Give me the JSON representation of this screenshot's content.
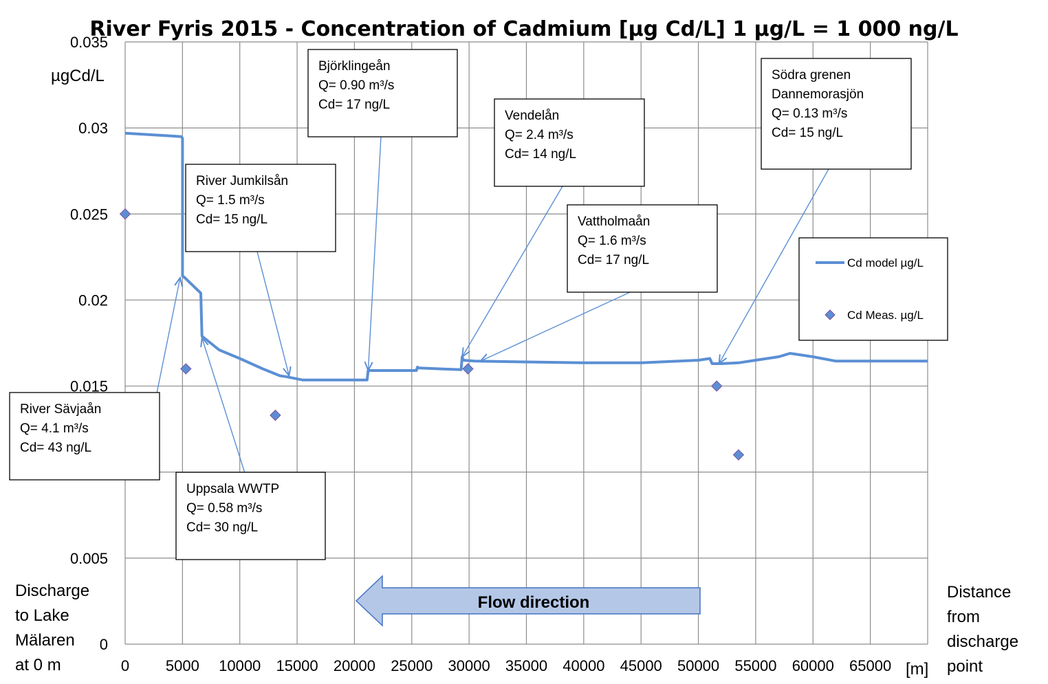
{
  "chart_data": {
    "type": "line",
    "title": "River Fyris 2015  - Concentration of Cadmium [µg Cd/L]    1 µg/L = 1 000 ng/L",
    "ylabel": "µgCd/L",
    "xlabel_left": [
      "Discharge",
      "to Lake",
      "Mälaren",
      "at 0 m"
    ],
    "xlabel_right": [
      "Distance",
      "from",
      "discharge",
      "point"
    ],
    "xunit": "[m]",
    "xlim": [
      0,
      70000
    ],
    "ylim": [
      0,
      0.035
    ],
    "xticks": [
      "0",
      "5000",
      "10000",
      "15000",
      "20000",
      "25000",
      "30000",
      "35000",
      "40000",
      "45000",
      "50000",
      "55000",
      "60000",
      "65000"
    ],
    "yticks": [
      "0",
      "0.005",
      "0.01",
      "0.015",
      "0.02",
      "0.025",
      "0.03",
      "0.035"
    ],
    "yticks_shown": [
      "0",
      "0.005",
      "",
      "0.015",
      "0.02",
      "0.025",
      "0.03",
      "0.035"
    ],
    "grid": true,
    "legend_position": "right",
    "series": [
      {
        "name": "Cd model µg/L",
        "kind": "line",
        "color": "#5b8fd4",
        "x": [
          0,
          4900,
          5000,
          5000,
          5200,
          6600,
          6700,
          8200,
          10000,
          12000,
          13500,
          14000,
          15500,
          17000,
          19000,
          21100,
          21200,
          25000,
          25400,
          25500,
          25600,
          29300,
          29400,
          29500,
          30500,
          35000,
          40000,
          45000,
          50000,
          51000,
          51200,
          52000,
          53500,
          55000,
          57000,
          58000,
          60000,
          62000,
          65000,
          70000
        ],
        "y": [
          0.0297,
          0.0295,
          0.0294,
          0.0214,
          0.0213,
          0.0204,
          0.0179,
          0.0171,
          0.0166,
          0.016,
          0.0156,
          0.01555,
          0.01535,
          0.01535,
          0.01535,
          0.01535,
          0.0159,
          0.0159,
          0.0159,
          0.0161,
          0.01605,
          0.01595,
          0.0167,
          0.0165,
          0.01645,
          0.0164,
          0.01635,
          0.01635,
          0.0165,
          0.0166,
          0.0163,
          0.0163,
          0.01635,
          0.0165,
          0.0167,
          0.0169,
          0.0167,
          0.01645,
          0.01645,
          0.01645
        ]
      },
      {
        "name": "Cd Meas. µg/L",
        "kind": "scatter",
        "color": "#5b8fd4",
        "x": [
          0,
          5300,
          13100,
          29900,
          51600,
          53500
        ],
        "y": [
          0.025,
          0.016,
          0.0133,
          0.016,
          0.015,
          0.011
        ]
      }
    ],
    "annotations": [
      {
        "lines": [
          "River Sävjaån",
          "Q= 4.1 m³/s",
          "Cd= 43 ng/L"
        ],
        "target": [
          4800,
          0.0213
        ]
      },
      {
        "lines": [
          "Uppsala WWTP",
          "Q= 0.58 m³/s",
          "Cd= 30 ng/L"
        ],
        "target": [
          6700,
          0.0178
        ]
      },
      {
        "lines": [
          "River Jumkilsån",
          "Q= 1.5 m³/s",
          "Cd= 15 ng/L"
        ],
        "target": [
          14300,
          0.0156
        ]
      },
      {
        "lines": [
          "Björklingeån",
          "Q= 0.90 m³/s",
          "Cd= 17 ng/L"
        ],
        "target": [
          21200,
          0.0159
        ]
      },
      {
        "lines": [
          "Vendelån",
          "Q= 2.4 m³/s",
          "Cd= 14 ng/L"
        ],
        "target": [
          29400,
          0.0167
        ]
      },
      {
        "lines": [
          "Vattholmaån",
          "Q= 1.6 m³/s",
          "Cd= 17 ng/L"
        ],
        "target": [
          31000,
          0.01645
        ]
      },
      {
        "lines": [
          "Södra grenen",
          "Dannemorasjön",
          "Q= 0.13 m³/s",
          "Cd=  15 ng/L"
        ],
        "target": [
          51800,
          0.0163
        ]
      }
    ],
    "flow_label": "Flow direction"
  }
}
